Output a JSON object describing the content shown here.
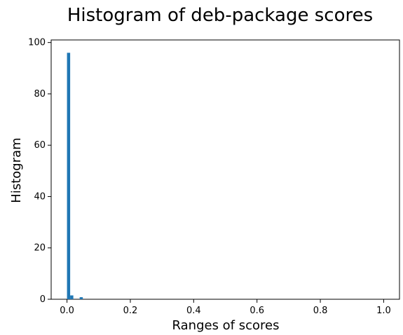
{
  "chart_data": {
    "type": "bar",
    "title": "Histogram of deb-package scores",
    "xlabel": "Ranges of scores",
    "ylabel": "Histogram",
    "xlim": [
      -0.05,
      1.05
    ],
    "ylim": [
      0,
      101
    ],
    "grid": false,
    "legend": "none",
    "bar_color": "#1f77b4",
    "bin_width": 0.01,
    "x_ticks": [
      0.0,
      0.2,
      0.4,
      0.6,
      0.8,
      1.0
    ],
    "x_tick_labels": [
      "0.0",
      "0.2",
      "0.4",
      "0.6",
      "0.8",
      "1.0"
    ],
    "y_ticks": [
      0,
      20,
      40,
      60,
      80,
      100
    ],
    "y_tick_labels": [
      "0",
      "20",
      "40",
      "60",
      "80",
      "100"
    ],
    "bins": [
      {
        "x": 0.0,
        "count": 96
      },
      {
        "x": 0.01,
        "count": 1.5
      },
      {
        "x": 0.04,
        "count": 0.8
      }
    ]
  }
}
